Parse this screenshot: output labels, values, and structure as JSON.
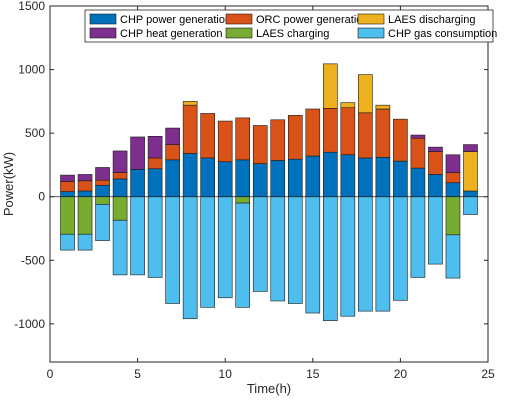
{
  "chart_data": {
    "type": "bar",
    "xlabel": "Time(h)",
    "ylabel": "Power(kW)",
    "xlim": [
      0,
      25
    ],
    "ylim": [
      -1300,
      1500
    ],
    "xticks": [
      0,
      5,
      10,
      15,
      20,
      25
    ],
    "xtick_labels": [
      "0",
      "5",
      "10",
      "15",
      "20",
      "25"
    ],
    "yticks": [
      -1000,
      -500,
      0,
      500,
      1000,
      1500
    ],
    "ytick_labels": [
      "-1000",
      "-500",
      "0",
      "500",
      "1000",
      "1500"
    ],
    "grid": false,
    "legend_position": "top",
    "x": [
      1,
      2,
      3,
      4,
      5,
      6,
      7,
      8,
      9,
      10,
      11,
      12,
      13,
      14,
      15,
      16,
      17,
      18,
      19,
      20,
      21,
      22,
      23,
      24
    ],
    "series": [
      {
        "name": "CHP power generation",
        "color": "#0072BD",
        "values": [
          40,
          45,
          90,
          140,
          215,
          220,
          290,
          340,
          305,
          275,
          290,
          260,
          285,
          295,
          320,
          350,
          330,
          305,
          310,
          280,
          225,
          175,
          110,
          45
        ]
      },
      {
        "name": "ORC power generation",
        "color": "#D95319",
        "values": [
          80,
          80,
          40,
          50,
          0,
          85,
          120,
          380,
          350,
          320,
          330,
          300,
          320,
          345,
          370,
          345,
          370,
          355,
          380,
          330,
          235,
          180,
          80,
          0
        ]
      },
      {
        "name": "LAES discharging",
        "color": "#EDB120",
        "values": [
          0,
          0,
          0,
          0,
          0,
          0,
          0,
          30,
          0,
          0,
          0,
          0,
          0,
          0,
          0,
          350,
          40,
          300,
          30,
          0,
          0,
          0,
          0,
          310
        ]
      },
      {
        "name": "CHP heat generation",
        "color": "#7E2F8E",
        "values": [
          50,
          50,
          100,
          170,
          255,
          170,
          130,
          0,
          0,
          0,
          0,
          0,
          0,
          0,
          0,
          0,
          0,
          0,
          0,
          0,
          25,
          35,
          140,
          55
        ]
      },
      {
        "name": "LAES charging",
        "color": "#77AC30",
        "values": [
          -295,
          -295,
          -60,
          -185,
          0,
          0,
          0,
          0,
          0,
          0,
          -50,
          0,
          0,
          0,
          0,
          0,
          0,
          0,
          0,
          0,
          0,
          0,
          -300,
          0
        ]
      },
      {
        "name": "CHP gas consumption",
        "color": "#4DBEEE",
        "values": [
          -125,
          -125,
          -285,
          -430,
          -615,
          -635,
          -840,
          -960,
          -870,
          -795,
          -820,
          -745,
          -820,
          -840,
          -915,
          -975,
          -940,
          -900,
          -900,
          -815,
          -635,
          -530,
          -340,
          -140
        ]
      }
    ]
  }
}
